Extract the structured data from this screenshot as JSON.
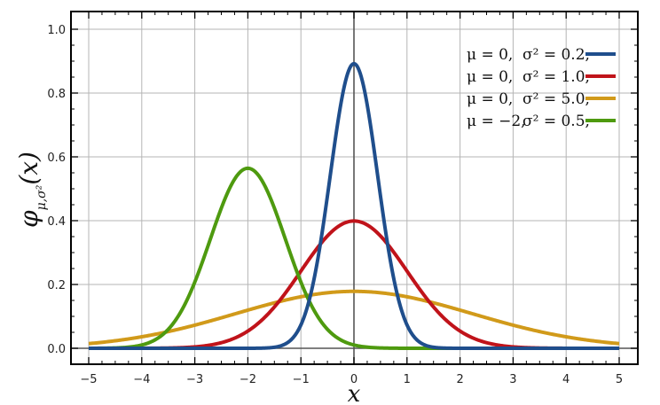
{
  "chart_data": {
    "type": "line",
    "title": "",
    "xlabel": "x",
    "ylabel": "φμ,σ²(x)",
    "ylabel_parts": {
      "phi": "φ",
      "sub": "μ,σ²",
      "arg": "(x)"
    },
    "xlim": [
      -5,
      5
    ],
    "ylim": [
      0,
      1.0
    ],
    "x_ticks": [
      -5,
      -4,
      -3,
      -2,
      -1,
      0,
      1,
      2,
      3,
      4,
      5
    ],
    "x_tick_labels": [
      "−5",
      "−4",
      "−3",
      "−2",
      "−1",
      "0",
      "1",
      "2",
      "3",
      "4",
      "5"
    ],
    "y_ticks": [
      0.0,
      0.2,
      0.4,
      0.6,
      0.8,
      1.0
    ],
    "y_tick_labels": [
      "0.0",
      "0.2",
      "0.4",
      "0.6",
      "0.8",
      "1.0"
    ],
    "grid": true,
    "legend_position": "top-right",
    "series": [
      {
        "mu": 0,
        "sigma2": 0.2,
        "mu_label": "μ = 0,",
        "sigma_label": "σ² = 0.2,",
        "color": "#1f4e8c",
        "peak": 0.892
      },
      {
        "mu": 0,
        "sigma2": 1.0,
        "mu_label": "μ = 0,",
        "sigma_label": "σ² = 1.0,",
        "color": "#c0131a",
        "peak": 0.399
      },
      {
        "mu": 0,
        "sigma2": 5.0,
        "mu_label": "μ = 0,",
        "sigma_label": "σ² = 5.0,",
        "color": "#d19a1a",
        "peak": 0.178
      },
      {
        "mu": -2,
        "sigma2": 0.5,
        "mu_label": "μ = −2,",
        "sigma_label": "σ² = 0.5,",
        "color": "#4e9a0f",
        "peak": 0.564
      }
    ]
  }
}
